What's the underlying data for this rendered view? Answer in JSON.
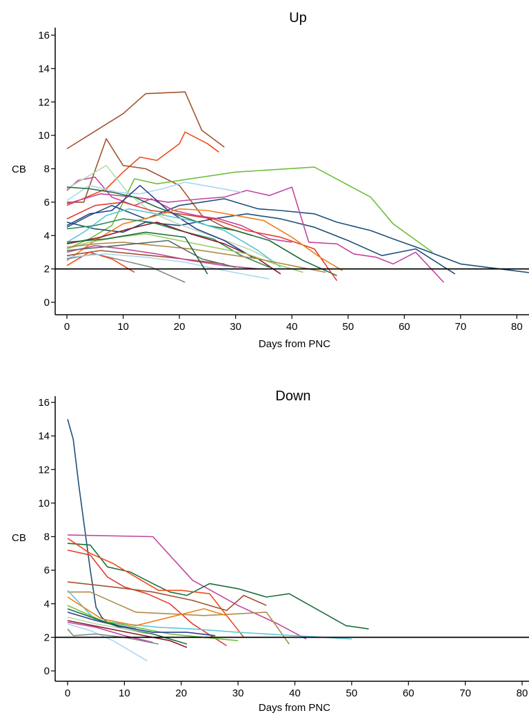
{
  "chart_data": [
    {
      "type": "line",
      "title": "Up",
      "xlabel": "Days from PNC",
      "ylabel": "CB",
      "xlim": [
        0,
        84
      ],
      "ylim": [
        0,
        16
      ],
      "xticks": [
        0,
        10,
        20,
        30,
        40,
        50,
        60,
        70,
        80
      ],
      "yticks": [
        0,
        2,
        4,
        6,
        8,
        10,
        12,
        14,
        16
      ],
      "reference_line": {
        "y": 2,
        "color": "#000000"
      },
      "grid": false,
      "legend": "none",
      "series": [
        {
          "color": "#a0522d",
          "x": [
            0,
            10,
            14,
            21,
            24,
            28
          ],
          "y": [
            9.2,
            11.3,
            12.5,
            12.6,
            10.3,
            9.3
          ]
        },
        {
          "color": "#f04a1e",
          "x": [
            0,
            7,
            10,
            13,
            16,
            20,
            21,
            25,
            27
          ],
          "y": [
            5.8,
            6.8,
            7.8,
            8.7,
            8.5,
            9.5,
            10.2,
            9.5,
            9.0
          ]
        },
        {
          "color": "#a0522d",
          "x": [
            0,
            3,
            7,
            10,
            14,
            20,
            24,
            28,
            33
          ],
          "y": [
            6.0,
            6.0,
            9.8,
            8.2,
            8.0,
            7.0,
            5.2,
            4.5,
            4.0
          ]
        },
        {
          "color": "#6dbf3c",
          "x": [
            0,
            4,
            8,
            12,
            16,
            20,
            30,
            44,
            54,
            58,
            65
          ],
          "y": [
            3.2,
            3.8,
            4.6,
            7.4,
            7.1,
            7.3,
            7.8,
            8.1,
            6.3,
            4.7,
            3.0
          ]
        },
        {
          "color": "#1f4e79",
          "x": [
            0,
            4,
            8,
            14,
            20,
            28,
            34,
            38,
            44,
            48,
            54,
            58,
            63,
            70,
            84
          ],
          "y": [
            4.5,
            5.2,
            5.8,
            5.0,
            5.8,
            6.2,
            5.6,
            5.5,
            5.3,
            4.8,
            4.3,
            3.8,
            3.2,
            2.3,
            1.7
          ]
        },
        {
          "color": "#1f4e79",
          "x": [
            0,
            5,
            10,
            14,
            20,
            26,
            32,
            38,
            44,
            50,
            56,
            62,
            69
          ],
          "y": [
            4.8,
            4.4,
            4.2,
            4.8,
            4.6,
            5.0,
            5.3,
            5.0,
            4.5,
            3.7,
            2.8,
            3.2,
            1.7
          ]
        },
        {
          "color": "#c2459e",
          "x": [
            0,
            6,
            12,
            18,
            24,
            28,
            32,
            36,
            40,
            43,
            48,
            51,
            55,
            58,
            62,
            67
          ],
          "y": [
            5.9,
            6.5,
            6.3,
            6.0,
            6.2,
            6.3,
            6.7,
            6.4,
            6.9,
            3.6,
            3.5,
            2.9,
            2.7,
            2.3,
            3.0,
            1.2
          ]
        },
        {
          "color": "#c2459e",
          "x": [
            0,
            2,
            5,
            8,
            12,
            15,
            19,
            23,
            27,
            31,
            36,
            40
          ],
          "y": [
            6.7,
            7.3,
            7.5,
            6.3,
            5.8,
            6.2,
            5.5,
            5.2,
            5.0,
            4.6,
            3.8,
            3.6
          ]
        },
        {
          "color": "#a9d8f0",
          "x": [
            0,
            4,
            9,
            13,
            17,
            21,
            26,
            31
          ],
          "y": [
            6.1,
            7.0,
            6.6,
            6.5,
            6.8,
            7.2,
            6.9,
            6.6
          ]
        },
        {
          "color": "#b7dbb0",
          "x": [
            0,
            3,
            7,
            11,
            15,
            19,
            23,
            29,
            33,
            37
          ],
          "y": [
            6.8,
            7.4,
            8.2,
            6.5,
            5.4,
            4.8,
            4.3,
            3.6,
            3.1,
            2.4
          ]
        },
        {
          "color": "#1b6e3c",
          "x": [
            0,
            4,
            8,
            12,
            16,
            20,
            25,
            30,
            36,
            42,
            48
          ],
          "y": [
            6.9,
            6.8,
            6.6,
            6.3,
            5.7,
            5.2,
            4.6,
            4.3,
            3.7,
            2.5,
            1.6
          ]
        },
        {
          "color": "#e33b2f",
          "x": [
            0,
            5,
            10,
            15,
            20,
            26,
            32,
            38,
            44,
            48
          ],
          "y": [
            5.0,
            5.8,
            6.0,
            5.5,
            5.3,
            5.0,
            4.3,
            3.9,
            3.2,
            1.3
          ]
        },
        {
          "color": "#2a3f8f",
          "x": [
            0,
            4,
            8,
            13,
            18,
            23,
            28,
            33
          ],
          "y": [
            4.6,
            5.3,
            5.5,
            7.0,
            5.5,
            4.4,
            3.7,
            2.7
          ]
        },
        {
          "color": "#ef7f1a",
          "x": [
            0,
            5,
            10,
            15,
            20,
            25,
            30,
            35,
            40,
            45,
            49
          ],
          "y": [
            2.5,
            3.7,
            4.7,
            5.1,
            5.6,
            5.5,
            5.2,
            4.9,
            3.9,
            2.7,
            1.9
          ]
        },
        {
          "color": "#5bc8d8",
          "x": [
            0,
            3,
            7,
            11,
            16,
            22,
            28,
            34,
            38
          ],
          "y": [
            3.6,
            4.2,
            5.2,
            5.6,
            5.3,
            4.9,
            4.3,
            3.1,
            2.1
          ]
        },
        {
          "color": "#2e8b57",
          "x": [
            0,
            5,
            10,
            15,
            20,
            26,
            31,
            36
          ],
          "y": [
            4.4,
            4.6,
            5.0,
            4.8,
            4.3,
            3.8,
            2.8,
            2.1
          ]
        },
        {
          "color": "#8b1a2e",
          "x": [
            0,
            6,
            11,
            16,
            22,
            28,
            34,
            38
          ],
          "y": [
            3.5,
            3.9,
            4.4,
            4.8,
            4.1,
            3.5,
            2.6,
            1.7
          ]
        },
        {
          "color": "#9ccc65",
          "x": [
            0,
            4,
            9,
            14,
            20,
            26,
            32,
            37,
            42
          ],
          "y": [
            3.2,
            3.6,
            3.9,
            4.1,
            3.7,
            3.3,
            2.9,
            2.3,
            1.8
          ]
        },
        {
          "color": "#b08a4a",
          "x": [
            0,
            5,
            10,
            16,
            22,
            28,
            34,
            40,
            46
          ],
          "y": [
            3.3,
            3.5,
            3.6,
            3.4,
            3.2,
            2.9,
            2.6,
            2.2,
            1.8
          ]
        },
        {
          "color": "#a0522d",
          "x": [
            0,
            6,
            12,
            18,
            23,
            28
          ],
          "y": [
            2.8,
            3.1,
            2.9,
            2.7,
            2.5,
            2.3
          ]
        },
        {
          "color": "#7d8c8a",
          "x": [
            0,
            5,
            10,
            15,
            21
          ],
          "y": [
            2.6,
            2.9,
            2.5,
            2.1,
            1.2
          ]
        },
        {
          "color": "#f04a1e",
          "x": [
            0,
            4,
            8,
            12
          ],
          "y": [
            2.2,
            3.0,
            2.6,
            1.8
          ]
        },
        {
          "color": "#c2459e",
          "x": [
            0,
            5,
            10,
            16,
            22,
            28,
            34
          ],
          "y": [
            3.0,
            3.4,
            3.2,
            2.9,
            2.5,
            2.2,
            2.0
          ]
        },
        {
          "color": "#a9d8f0",
          "x": [
            0,
            7,
            14,
            21,
            28,
            36
          ],
          "y": [
            2.7,
            2.9,
            2.7,
            2.4,
            1.9,
            1.4
          ]
        },
        {
          "color": "#5d6b69",
          "x": [
            0,
            6,
            12,
            18,
            24,
            30
          ],
          "y": [
            3.1,
            3.3,
            3.5,
            3.7,
            2.6,
            2.1
          ]
        },
        {
          "color": "#1b6e3c",
          "x": [
            0,
            7,
            14,
            21,
            25
          ],
          "y": [
            3.6,
            3.8,
            4.2,
            3.9,
            1.7
          ]
        }
      ]
    },
    {
      "type": "line",
      "title": "Down",
      "xlabel": "Days from PNC",
      "ylabel": "CB",
      "xlim": [
        0,
        80
      ],
      "ylim": [
        0,
        16
      ],
      "xticks": [
        0,
        10,
        20,
        30,
        40,
        50,
        60,
        70,
        80
      ],
      "yticks": [
        0,
        2,
        4,
        6,
        8,
        10,
        12,
        14,
        16
      ],
      "reference_line": {
        "y": 2,
        "color": "#000000"
      },
      "grid": false,
      "legend": "none",
      "series": [
        {
          "color": "#1f4e79",
          "x": [
            0,
            1,
            2,
            3,
            4,
            5,
            6,
            7,
            9,
            12
          ],
          "y": [
            15.0,
            13.8,
            11.0,
            8.5,
            6.0,
            3.8,
            3.2,
            2.9,
            2.7,
            2.5
          ]
        },
        {
          "color": "#c2459e",
          "x": [
            0,
            15,
            22,
            30,
            37,
            42
          ],
          "y": [
            8.1,
            8.0,
            5.4,
            3.9,
            2.8,
            1.9
          ]
        },
        {
          "color": "#1b6e3c",
          "x": [
            0,
            4,
            7,
            11,
            15,
            18,
            21,
            25,
            30,
            35,
            39,
            49,
            53
          ],
          "y": [
            7.6,
            7.5,
            6.2,
            5.9,
            5.2,
            4.7,
            4.5,
            5.2,
            4.9,
            4.4,
            4.6,
            2.7,
            2.5
          ]
        },
        {
          "color": "#e33b2f",
          "x": [
            0,
            4,
            7,
            10,
            14,
            18,
            22,
            28
          ],
          "y": [
            7.2,
            6.9,
            5.6,
            5.0,
            4.6,
            4.0,
            2.8,
            1.5
          ]
        },
        {
          "color": "#f04a1e",
          "x": [
            0,
            4,
            8,
            12,
            16,
            20,
            25,
            31
          ],
          "y": [
            7.9,
            7.0,
            6.4,
            5.6,
            4.8,
            4.8,
            4.6,
            2.0
          ]
        },
        {
          "color": "#a0522d",
          "x": [
            0,
            8,
            15,
            22,
            28,
            31,
            35
          ],
          "y": [
            5.3,
            5.0,
            4.7,
            4.2,
            3.6,
            4.5,
            3.9
          ]
        },
        {
          "color": "#b08a4a",
          "x": [
            0,
            4,
            8,
            12,
            18,
            24,
            30,
            35,
            39
          ],
          "y": [
            4.7,
            4.7,
            4.1,
            3.5,
            3.4,
            3.3,
            3.4,
            3.5,
            1.6
          ]
        },
        {
          "color": "#5bc8d8",
          "x": [
            0,
            5,
            10,
            16,
            22,
            30,
            40,
            50
          ],
          "y": [
            4.8,
            3.0,
            2.8,
            2.6,
            2.5,
            2.3,
            2.1,
            1.9
          ]
        },
        {
          "color": "#ef7f1a",
          "x": [
            0,
            6,
            12,
            18,
            24,
            28
          ],
          "y": [
            4.4,
            3.1,
            2.7,
            3.2,
            3.7,
            3.3
          ]
        },
        {
          "color": "#6dbf3c",
          "x": [
            0,
            6,
            12,
            18,
            24,
            30
          ],
          "y": [
            3.9,
            3.0,
            2.6,
            2.2,
            2.0,
            1.8
          ]
        },
        {
          "color": "#2a3f8f",
          "x": [
            0,
            5,
            10,
            15,
            21,
            26
          ],
          "y": [
            3.5,
            3.0,
            2.6,
            2.3,
            2.3,
            2.1
          ]
        },
        {
          "color": "#1b6e3c",
          "x": [
            0,
            5,
            10,
            15,
            21
          ],
          "y": [
            3.7,
            3.1,
            2.5,
            2.2,
            1.6
          ]
        },
        {
          "color": "#8b1a2e",
          "x": [
            0,
            6,
            12,
            18,
            21
          ],
          "y": [
            3.0,
            2.6,
            2.2,
            1.8,
            1.4
          ]
        },
        {
          "color": "#c2459e",
          "x": [
            0,
            5,
            10,
            15
          ],
          "y": [
            2.9,
            2.6,
            2.1,
            1.7
          ]
        },
        {
          "color": "#a9d8f0",
          "x": [
            0,
            4,
            8,
            14
          ],
          "y": [
            2.8,
            2.4,
            1.8,
            0.6
          ]
        },
        {
          "color": "#7d8c8a",
          "x": [
            0,
            1,
            5,
            10,
            16
          ],
          "y": [
            2.5,
            2.1,
            2.2,
            2.0,
            1.6
          ]
        },
        {
          "color": "#b7dbb0",
          "x": [
            0,
            5,
            10,
            14
          ],
          "y": [
            3.2,
            2.8,
            2.5,
            2.2
          ]
        }
      ]
    }
  ]
}
